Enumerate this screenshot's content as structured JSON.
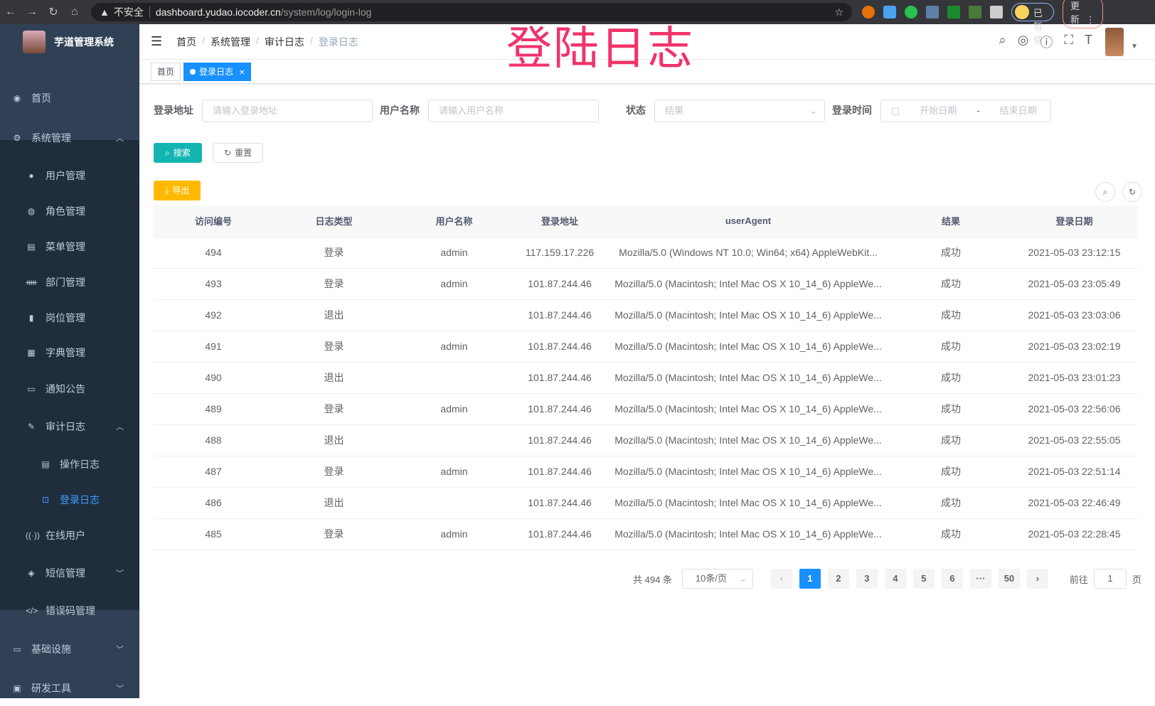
{
  "browser": {
    "insecure_label": "不安全",
    "url_host": "dashboard.yudao.iocoder.cn",
    "url_path": "/system/log/login-log",
    "paused_label": "已暂停",
    "update_label": "更新"
  },
  "overlay_title": "登陆日志",
  "sidebar": {
    "app_title": "芋道管理系统",
    "items": [
      {
        "label": "首页",
        "icon": "dashboard-icon"
      },
      {
        "label": "系统管理",
        "icon": "gear-icon",
        "expanded": true
      },
      {
        "label": "用户管理",
        "icon": "user-icon"
      },
      {
        "label": "角色管理",
        "icon": "peoples-icon"
      },
      {
        "label": "菜单管理",
        "icon": "tree-table-icon"
      },
      {
        "label": "部门管理",
        "icon": "tree-icon"
      },
      {
        "label": "岗位管理",
        "icon": "post-icon"
      },
      {
        "label": "字典管理",
        "icon": "dict-icon"
      },
      {
        "label": "通知公告",
        "icon": "message-icon"
      },
      {
        "label": "审计日志",
        "icon": "log-icon",
        "expanded": true
      },
      {
        "label": "操作日志",
        "icon": "form-icon"
      },
      {
        "label": "登录日志",
        "icon": "logininfor-icon",
        "active": true
      },
      {
        "label": "在线用户",
        "icon": "online-icon"
      },
      {
        "label": "短信管理",
        "icon": "validcode-icon"
      },
      {
        "label": "错误码管理",
        "icon": "code-icon"
      },
      {
        "label": "基础设施",
        "icon": "monitor-icon"
      },
      {
        "label": "研发工具",
        "icon": "tool-icon"
      }
    ]
  },
  "breadcrumb": [
    "首页",
    "系统管理",
    "审计日志",
    "登录日志"
  ],
  "tags": [
    {
      "label": "首页"
    },
    {
      "label": "登录日志",
      "active": true
    }
  ],
  "filters": {
    "address": {
      "label": "登录地址",
      "placeholder": "请输入登录地址"
    },
    "username": {
      "label": "用户名称",
      "placeholder": "请输入用户名称"
    },
    "status": {
      "label": "状态",
      "placeholder": "结果"
    },
    "time": {
      "label": "登录时间",
      "start_placeholder": "开始日期",
      "separator": "-",
      "end_placeholder": "结束日期"
    }
  },
  "buttons": {
    "search": "搜索",
    "reset": "重置",
    "export": "导出"
  },
  "table": {
    "columns": [
      "访问编号",
      "日志类型",
      "用户名称",
      "登录地址",
      "userAgent",
      "结果",
      "登录日期"
    ],
    "rows": [
      [
        "494",
        "登录",
        "admin",
        "117.159.17.226",
        "Mozilla/5.0 (Windows NT 10.0; Win64; x64) AppleWebKit...",
        "成功",
        "2021-05-03 23:12:15"
      ],
      [
        "493",
        "登录",
        "admin",
        "101.87.244.46",
        "Mozilla/5.0 (Macintosh; Intel Mac OS X 10_14_6) AppleWe...",
        "成功",
        "2021-05-03 23:05:49"
      ],
      [
        "492",
        "退出",
        "",
        "101.87.244.46",
        "Mozilla/5.0 (Macintosh; Intel Mac OS X 10_14_6) AppleWe...",
        "成功",
        "2021-05-03 23:03:06"
      ],
      [
        "491",
        "登录",
        "admin",
        "101.87.244.46",
        "Mozilla/5.0 (Macintosh; Intel Mac OS X 10_14_6) AppleWe...",
        "成功",
        "2021-05-03 23:02:19"
      ],
      [
        "490",
        "退出",
        "",
        "101.87.244.46",
        "Mozilla/5.0 (Macintosh; Intel Mac OS X 10_14_6) AppleWe...",
        "成功",
        "2021-05-03 23:01:23"
      ],
      [
        "489",
        "登录",
        "admin",
        "101.87.244.46",
        "Mozilla/5.0 (Macintosh; Intel Mac OS X 10_14_6) AppleWe...",
        "成功",
        "2021-05-03 22:56:06"
      ],
      [
        "488",
        "退出",
        "",
        "101.87.244.46",
        "Mozilla/5.0 (Macintosh; Intel Mac OS X 10_14_6) AppleWe...",
        "成功",
        "2021-05-03 22:55:05"
      ],
      [
        "487",
        "登录",
        "admin",
        "101.87.244.46",
        "Mozilla/5.0 (Macintosh; Intel Mac OS X 10_14_6) AppleWe...",
        "成功",
        "2021-05-03 22:51:14"
      ],
      [
        "486",
        "退出",
        "",
        "101.87.244.46",
        "Mozilla/5.0 (Macintosh; Intel Mac OS X 10_14_6) AppleWe...",
        "成功",
        "2021-05-03 22:46:49"
      ],
      [
        "485",
        "登录",
        "admin",
        "101.87.244.46",
        "Mozilla/5.0 (Macintosh; Intel Mac OS X 10_14_6) AppleWe...",
        "成功",
        "2021-05-03 22:28:45"
      ]
    ]
  },
  "pagination": {
    "total": "共 494 条",
    "page_size": "10条/页",
    "pages": [
      "1",
      "2",
      "3",
      "4",
      "5",
      "6",
      "···",
      "50"
    ],
    "current": "1",
    "goto_label": "前往",
    "goto_value": "1",
    "page_suffix": "页",
    "prev": "‹",
    "next": "›"
  }
}
